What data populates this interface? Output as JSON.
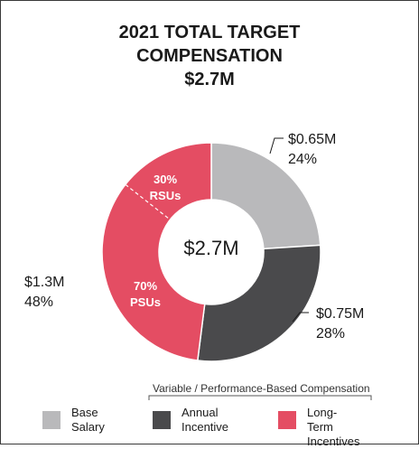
{
  "title": {
    "line1": "2021 TOTAL TARGET",
    "line2": "COMPENSATION",
    "line3": "$2.7M"
  },
  "center_label": "$2.7M",
  "bracket_label": "Variable / Performance-Based Compensation",
  "legend": [
    {
      "line1": "Base",
      "line2": "Salary"
    },
    {
      "line1": "Annual",
      "line2": "Incentive"
    },
    {
      "line1": "Long-Term",
      "line2": "Incentives"
    }
  ],
  "chart_data": {
    "type": "pie",
    "donut": true,
    "title": "2021 TOTAL TARGET COMPENSATION $2.7M",
    "center_text": "$2.7M",
    "slices": [
      {
        "label": "Base Salary",
        "value_text": "$0.65M",
        "percent": 24,
        "percent_text": "24%",
        "color": "#b9b9bb"
      },
      {
        "label": "Annual Incentive",
        "value_text": "$0.75M",
        "percent": 28,
        "percent_text": "28%",
        "color": "#4a4a4c"
      },
      {
        "label": "Long-Term Incentives",
        "value_text": "$1.3M",
        "percent": 48,
        "percent_text": "48%",
        "color": "#e44d63",
        "breakdown": [
          {
            "label": "RSUs",
            "percent_text": "30%",
            "fraction": 0.3
          },
          {
            "label": "PSUs",
            "percent_text": "70%",
            "fraction": 0.7
          }
        ]
      }
    ],
    "legend_placement": "bottom"
  }
}
